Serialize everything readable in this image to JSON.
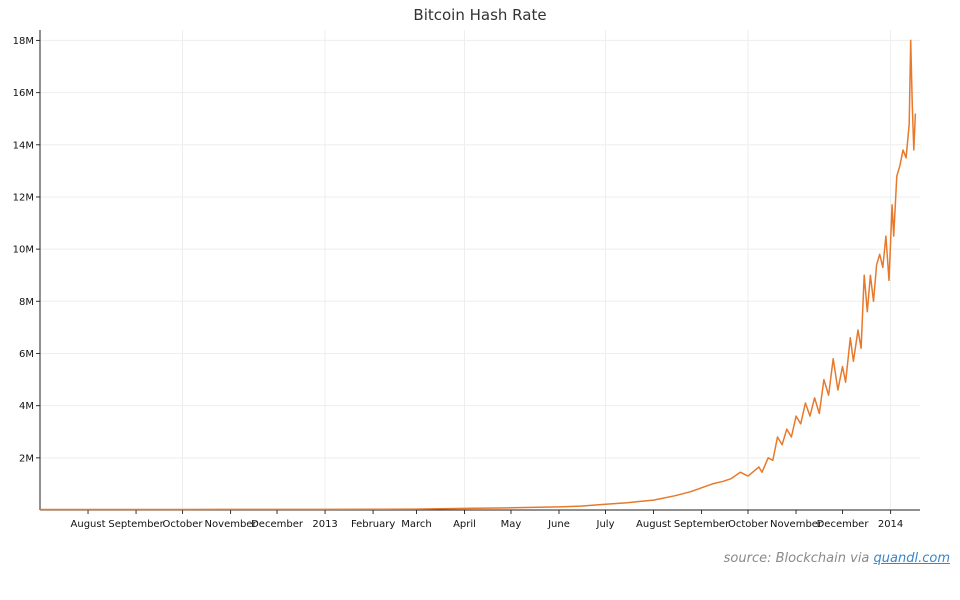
{
  "chart_data": {
    "type": "line",
    "title": "Bitcoin Hash Rate",
    "xlabel": "",
    "ylabel": "",
    "x_range": [
      "2012-07-01",
      "2014-01-20"
    ],
    "ylim": [
      0,
      18400000
    ],
    "y_ticks": [
      {
        "value": 2000000,
        "label": "2M"
      },
      {
        "value": 4000000,
        "label": "4M"
      },
      {
        "value": 6000000,
        "label": "6M"
      },
      {
        "value": 8000000,
        "label": "8M"
      },
      {
        "value": 10000000,
        "label": "10M"
      },
      {
        "value": 12000000,
        "label": "12M"
      },
      {
        "value": 14000000,
        "label": "14M"
      },
      {
        "value": 16000000,
        "label": "16M"
      },
      {
        "value": 18000000,
        "label": "18M"
      }
    ],
    "x_ticks": [
      {
        "date": "2012-08-01",
        "label": "August"
      },
      {
        "date": "2012-09-01",
        "label": "September"
      },
      {
        "date": "2012-10-01",
        "label": "October"
      },
      {
        "date": "2012-11-01",
        "label": "November"
      },
      {
        "date": "2012-12-01",
        "label": "December"
      },
      {
        "date": "2013-01-01",
        "label": "2013"
      },
      {
        "date": "2013-02-01",
        "label": "February"
      },
      {
        "date": "2013-03-01",
        "label": "March"
      },
      {
        "date": "2013-04-01",
        "label": "April"
      },
      {
        "date": "2013-05-01",
        "label": "May"
      },
      {
        "date": "2013-06-01",
        "label": "June"
      },
      {
        "date": "2013-07-01",
        "label": "July"
      },
      {
        "date": "2013-08-01",
        "label": "August"
      },
      {
        "date": "2013-09-01",
        "label": "September"
      },
      {
        "date": "2013-10-01",
        "label": "October"
      },
      {
        "date": "2013-11-01",
        "label": "November"
      },
      {
        "date": "2013-12-01",
        "label": "December"
      },
      {
        "date": "2014-01-01",
        "label": "2014"
      }
    ],
    "grid": true,
    "legend": "none",
    "series": [
      {
        "color": "#e8792b",
        "points": [
          [
            "2012-07-01",
            18000
          ],
          [
            "2012-08-01",
            19000
          ],
          [
            "2012-09-01",
            20000
          ],
          [
            "2012-10-01",
            21000
          ],
          [
            "2012-11-01",
            22000
          ],
          [
            "2012-12-01",
            23000
          ],
          [
            "2013-01-01",
            23000
          ],
          [
            "2013-02-01",
            25000
          ],
          [
            "2013-03-01",
            35000
          ],
          [
            "2013-04-01",
            60000
          ],
          [
            "2013-05-01",
            85000
          ],
          [
            "2013-06-01",
            120000
          ],
          [
            "2013-06-15",
            150000
          ],
          [
            "2013-07-01",
            220000
          ],
          [
            "2013-07-15",
            280000
          ],
          [
            "2013-08-01",
            380000
          ],
          [
            "2013-08-15",
            550000
          ],
          [
            "2013-08-25",
            700000
          ],
          [
            "2013-09-01",
            850000
          ],
          [
            "2013-09-08",
            1000000
          ],
          [
            "2013-09-15",
            1100000
          ],
          [
            "2013-09-20",
            1200000
          ],
          [
            "2013-09-26",
            1450000
          ],
          [
            "2013-10-01",
            1300000
          ],
          [
            "2013-10-05",
            1500000
          ],
          [
            "2013-10-08",
            1650000
          ],
          [
            "2013-10-10",
            1450000
          ],
          [
            "2013-10-14",
            2000000
          ],
          [
            "2013-10-17",
            1900000
          ],
          [
            "2013-10-20",
            2800000
          ],
          [
            "2013-10-23",
            2500000
          ],
          [
            "2013-10-26",
            3100000
          ],
          [
            "2013-10-29",
            2800000
          ],
          [
            "2013-11-01",
            3600000
          ],
          [
            "2013-11-04",
            3300000
          ],
          [
            "2013-11-07",
            4100000
          ],
          [
            "2013-11-10",
            3600000
          ],
          [
            "2013-11-13",
            4300000
          ],
          [
            "2013-11-16",
            3700000
          ],
          [
            "2013-11-19",
            5000000
          ],
          [
            "2013-11-22",
            4400000
          ],
          [
            "2013-11-25",
            5800000
          ],
          [
            "2013-11-28",
            4600000
          ],
          [
            "2013-12-01",
            5500000
          ],
          [
            "2013-12-03",
            4900000
          ],
          [
            "2013-12-06",
            6600000
          ],
          [
            "2013-12-08",
            5700000
          ],
          [
            "2013-12-11",
            6900000
          ],
          [
            "2013-12-13",
            6200000
          ],
          [
            "2013-12-15",
            9000000
          ],
          [
            "2013-12-17",
            7600000
          ],
          [
            "2013-12-19",
            9000000
          ],
          [
            "2013-12-21",
            8000000
          ],
          [
            "2013-12-23",
            9400000
          ],
          [
            "2013-12-25",
            9800000
          ],
          [
            "2013-12-27",
            9300000
          ],
          [
            "2013-12-29",
            10500000
          ],
          [
            "2013-12-31",
            8800000
          ],
          [
            "2014-01-02",
            11700000
          ],
          [
            "2014-01-03",
            10500000
          ],
          [
            "2014-01-05",
            12800000
          ],
          [
            "2014-01-07",
            13200000
          ],
          [
            "2014-01-09",
            13800000
          ],
          [
            "2014-01-11",
            13500000
          ],
          [
            "2014-01-13",
            14800000
          ],
          [
            "2014-01-14",
            18000000
          ],
          [
            "2014-01-15",
            15500000
          ],
          [
            "2014-01-16",
            13800000
          ],
          [
            "2014-01-17",
            15200000
          ]
        ]
      }
    ]
  },
  "source": {
    "prefix": "source: Blockchain via ",
    "link_text": "quandl.com"
  }
}
